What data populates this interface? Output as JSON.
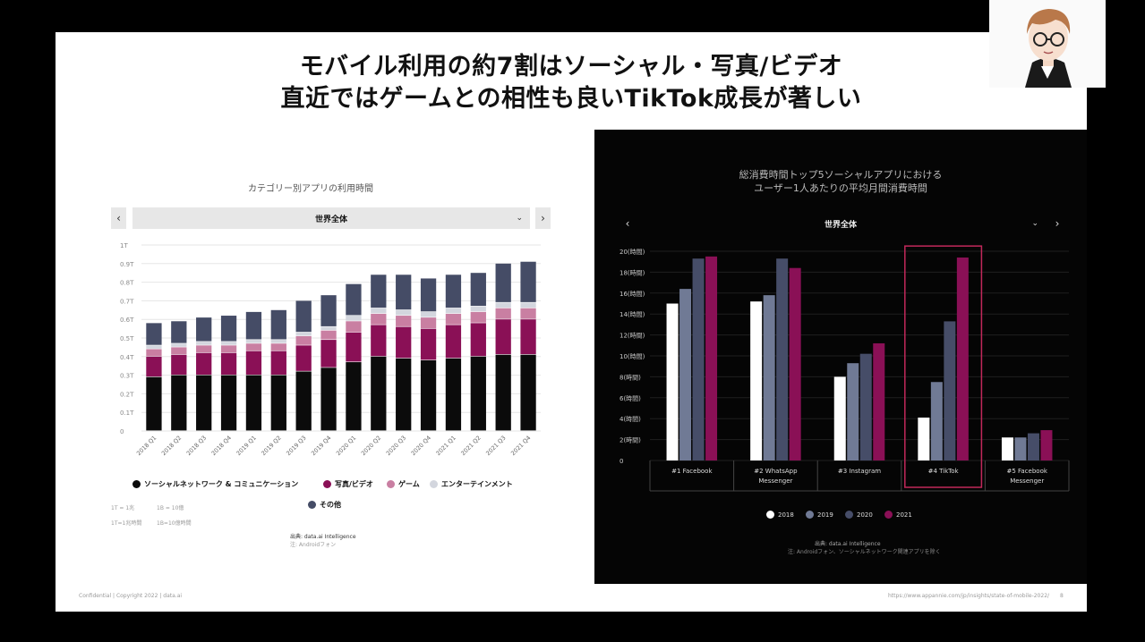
{
  "slide": {
    "title_line1": "モバイル利用の約7割はソーシャル・写真/ビデオ",
    "title_line2": "直近ではゲームとの相性も良いTikTok成長が著しい",
    "footer_left": "Confidential | Copyright 2022 | data.ai",
    "footer_url": "https://www.appannie.com/jp/insights/state-of-mobile-2022/",
    "page_number": "8"
  },
  "left_chart": {
    "title": "カテゴリー別アプリの利用時間",
    "region": "世界全体",
    "legend": [
      "ソーシャルネットワーク & コミュニケーション",
      "写真/ビデオ",
      "ゲーム",
      "エンターテインメント",
      "その他"
    ],
    "notes": [
      "1T = 1兆",
      "1B = 10億",
      "1T=1兆時間",
      "1B=10億時間"
    ],
    "source": "出典: data.ai Intelligence",
    "source_note": "注: Androidフォン",
    "colors": {
      "social": "#0b0b0b",
      "photo": "#8a1056",
      "game": "#c97fa2",
      "ent": "#d3d6de",
      "other": "#454c66"
    }
  },
  "right_chart": {
    "title_line1": "総消費時間トップ5ソーシャルアプリにおける",
    "title_line2": "ユーザー1人あたりの平均月間消費時間",
    "region": "世界全体",
    "legend": [
      "2018",
      "2019",
      "2020",
      "2021"
    ],
    "source": "出典: data.ai Intelligence",
    "source_note": "注: Androidフォン、ソーシャルネットワーク関連アプリを除く",
    "colors": {
      "2018": "#ffffff",
      "2019": "#707a95",
      "2020": "#464d68",
      "2021": "#8a1056"
    },
    "highlight_color": "#c2285a"
  },
  "chart_data": [
    {
      "type": "bar",
      "stacked": true,
      "title": "カテゴリー別アプリの利用時間",
      "categories": [
        "2018 Q1",
        "2018 Q2",
        "2018 Q3",
        "2018 Q4",
        "2019 Q1",
        "2019 Q2",
        "2019 Q3",
        "2019 Q4",
        "2020 Q1",
        "2020 Q2",
        "2020 Q3",
        "2020 Q4",
        "2021 Q1",
        "2021 Q2",
        "2021 Q3",
        "2021 Q4"
      ],
      "y_ticks": [
        "0",
        "0.1T",
        "0.2T",
        "0.3T",
        "0.4T",
        "0.5T",
        "0.6T",
        "0.7T",
        "0.8T",
        "0.9T",
        "1T"
      ],
      "ylim": [
        0,
        1.0
      ],
      "series": [
        {
          "name": "ソーシャルネットワーク & コミュニケーション",
          "values": [
            0.29,
            0.3,
            0.3,
            0.3,
            0.3,
            0.3,
            0.32,
            0.34,
            0.37,
            0.4,
            0.39,
            0.38,
            0.39,
            0.4,
            0.41,
            0.41
          ]
        },
        {
          "name": "写真/ビデオ",
          "values": [
            0.11,
            0.11,
            0.12,
            0.12,
            0.13,
            0.13,
            0.14,
            0.15,
            0.16,
            0.17,
            0.17,
            0.17,
            0.18,
            0.18,
            0.19,
            0.19
          ]
        },
        {
          "name": "ゲーム",
          "values": [
            0.04,
            0.04,
            0.04,
            0.04,
            0.04,
            0.04,
            0.05,
            0.05,
            0.06,
            0.06,
            0.06,
            0.06,
            0.06,
            0.06,
            0.06,
            0.06
          ]
        },
        {
          "name": "エンターテインメント",
          "values": [
            0.02,
            0.02,
            0.02,
            0.02,
            0.02,
            0.02,
            0.02,
            0.02,
            0.03,
            0.03,
            0.03,
            0.03,
            0.03,
            0.03,
            0.03,
            0.03
          ]
        },
        {
          "name": "その他",
          "values": [
            0.12,
            0.12,
            0.13,
            0.14,
            0.15,
            0.16,
            0.17,
            0.17,
            0.17,
            0.18,
            0.19,
            0.18,
            0.18,
            0.18,
            0.21,
            0.22
          ]
        }
      ]
    },
    {
      "type": "bar",
      "title": "総消費時間トップ5ソーシャルアプリにおけるユーザー1人あたりの平均月間消費時間",
      "categories": [
        "#1 Facebook",
        "#2 WhatsApp Messenger",
        "#3 Instagram",
        "#4 TikTok",
        "#5 Facebook Messenger"
      ],
      "y_ticks": [
        "0",
        "2(時間)",
        "4(時間)",
        "6(時間)",
        "8(時間)",
        "10(時間)",
        "12(時間)",
        "14(時間)",
        "16(時間)",
        "18(時間)",
        "20(時間)"
      ],
      "ylim": [
        0,
        20
      ],
      "highlight_category": "#4 TikTok",
      "series": [
        {
          "name": "2018",
          "values": [
            15.0,
            15.2,
            8.0,
            4.1,
            2.2
          ]
        },
        {
          "name": "2019",
          "values": [
            16.4,
            15.8,
            9.3,
            7.5,
            2.2
          ]
        },
        {
          "name": "2020",
          "values": [
            19.3,
            19.3,
            10.2,
            13.3,
            2.6
          ]
        },
        {
          "name": "2021",
          "values": [
            19.5,
            18.4,
            11.2,
            19.4,
            2.9
          ]
        }
      ]
    }
  ]
}
